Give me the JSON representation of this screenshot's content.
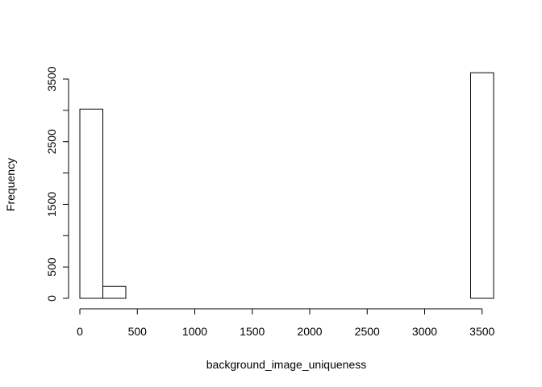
{
  "chart_data": {
    "type": "bar",
    "subtype": "histogram",
    "title": "",
    "xlabel": "background_image_uniqueness",
    "ylabel": "Frequency",
    "bin_width": 200,
    "bins": [
      {
        "start": 0,
        "end": 200,
        "count": 3020
      },
      {
        "start": 200,
        "end": 400,
        "count": 190
      },
      {
        "start": 400,
        "end": 600,
        "count": 0
      },
      {
        "start": 600,
        "end": 800,
        "count": 0
      },
      {
        "start": 800,
        "end": 1000,
        "count": 0
      },
      {
        "start": 1000,
        "end": 1200,
        "count": 0
      },
      {
        "start": 1200,
        "end": 1400,
        "count": 0
      },
      {
        "start": 1400,
        "end": 1600,
        "count": 0
      },
      {
        "start": 1600,
        "end": 1800,
        "count": 0
      },
      {
        "start": 1800,
        "end": 2000,
        "count": 0
      },
      {
        "start": 2000,
        "end": 2200,
        "count": 0
      },
      {
        "start": 2200,
        "end": 2400,
        "count": 0
      },
      {
        "start": 2400,
        "end": 2600,
        "count": 0
      },
      {
        "start": 2600,
        "end": 2800,
        "count": 0
      },
      {
        "start": 2800,
        "end": 3000,
        "count": 0
      },
      {
        "start": 3000,
        "end": 3200,
        "count": 0
      },
      {
        "start": 3200,
        "end": 3400,
        "count": 0
      },
      {
        "start": 3400,
        "end": 3600,
        "count": 3600
      }
    ],
    "x_ticks": [
      0,
      500,
      1000,
      1500,
      2000,
      2500,
      3000,
      3500
    ],
    "y_ticks": [
      0,
      500,
      1000,
      1500,
      2000,
      2500,
      3000,
      3500
    ],
    "y_tick_labels": [
      "0",
      "500",
      "",
      "1500",
      "",
      "2500",
      "",
      "3500"
    ],
    "xlim": [
      0,
      3600
    ],
    "ylim": [
      0,
      3600
    ],
    "grid": false,
    "legend": "none",
    "bar_fill": "#ffffff",
    "bar_stroke": "#000000"
  }
}
